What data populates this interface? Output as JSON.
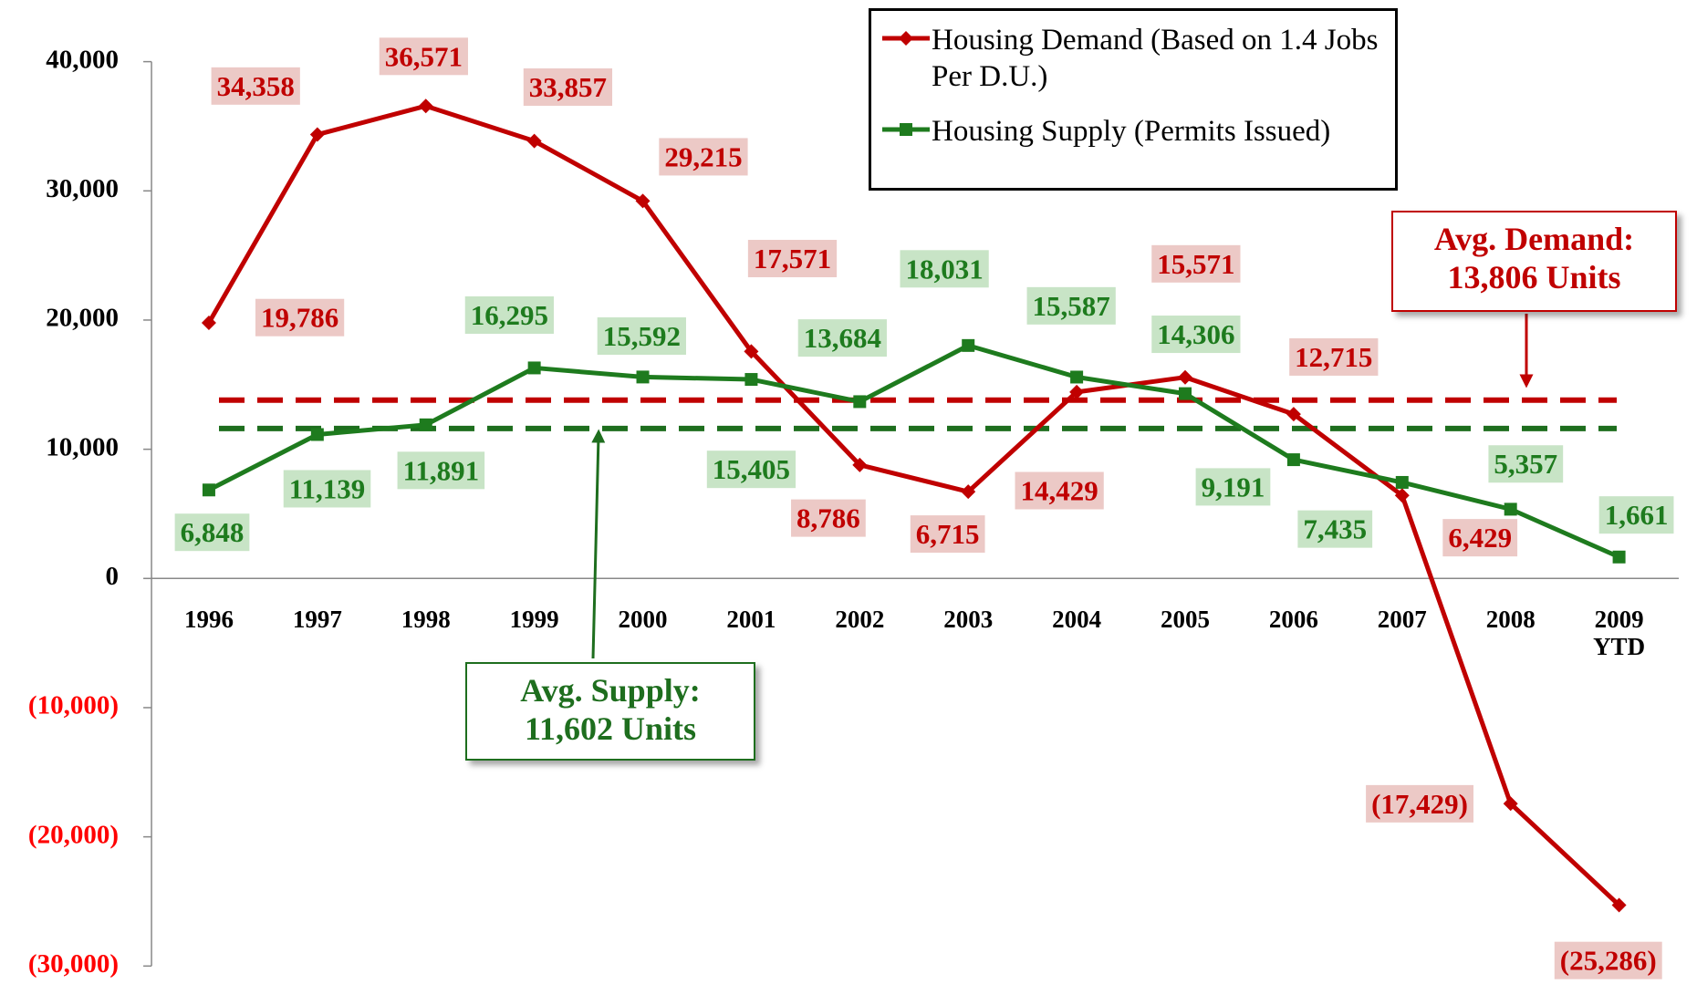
{
  "chart_data": {
    "type": "line",
    "categories": [
      "1996",
      "1997",
      "1998",
      "1999",
      "2000",
      "2001",
      "2002",
      "2003",
      "2004",
      "2005",
      "2006",
      "2007",
      "2008",
      "2009 YTD"
    ],
    "series": [
      {
        "name": "Housing Demand (Based on 1.4 Jobs Per D.U.)",
        "color": "#c00000",
        "label_bg": "#ecc9c6",
        "marker": "diamond",
        "values": [
          19786,
          34358,
          36571,
          33857,
          29215,
          17571,
          8786,
          6715,
          14429,
          15571,
          12715,
          6429,
          -17429,
          -25286
        ],
        "value_labels": [
          "19,786",
          "34,358",
          "36,571",
          "33,857",
          "29,215",
          "17,571",
          "8,786",
          "6,715",
          "14,429",
          "15,571",
          "12,715",
          "6,429",
          "(17,429)",
          "(25,286)"
        ]
      },
      {
        "name": "Housing Supply (Permits Issued)",
        "color": "#1e7b1e",
        "label_bg": "#c8e4c6",
        "marker": "square",
        "values": [
          6848,
          11139,
          11891,
          16295,
          15592,
          15405,
          13684,
          18031,
          15587,
          14306,
          9191,
          7435,
          5357,
          1661
        ],
        "value_labels": [
          "6,848",
          "11,139",
          "11,891",
          "16,295",
          "15,592",
          "15,405",
          "13,684",
          "18,031",
          "15,587",
          "14,306",
          "9,191",
          "7,435",
          "5,357",
          "1,661"
        ]
      }
    ],
    "reference_lines": [
      {
        "value": 13806,
        "color": "#c00000",
        "label": [
          "Avg. Demand:",
          "13,806 Units"
        ]
      },
      {
        "value": 11602,
        "color": "#1e6e1e",
        "label": [
          "Avg. Supply:",
          "11,602 Units"
        ]
      }
    ],
    "ylim": [
      -30000,
      40000
    ],
    "yticks": [
      {
        "value": -30000,
        "label": "(30,000)"
      },
      {
        "value": -20000,
        "label": "(20,000)"
      },
      {
        "value": -10000,
        "label": "(10,000)"
      },
      0,
      {
        "value": 10000,
        "label": "10,000"
      },
      {
        "value": 20000,
        "label": "20,000"
      },
      {
        "value": 30000,
        "label": "30,000"
      },
      {
        "value": 40000,
        "label": "40,000"
      }
    ],
    "negative_tick_color": "#ff0000",
    "legend": "top-right"
  }
}
